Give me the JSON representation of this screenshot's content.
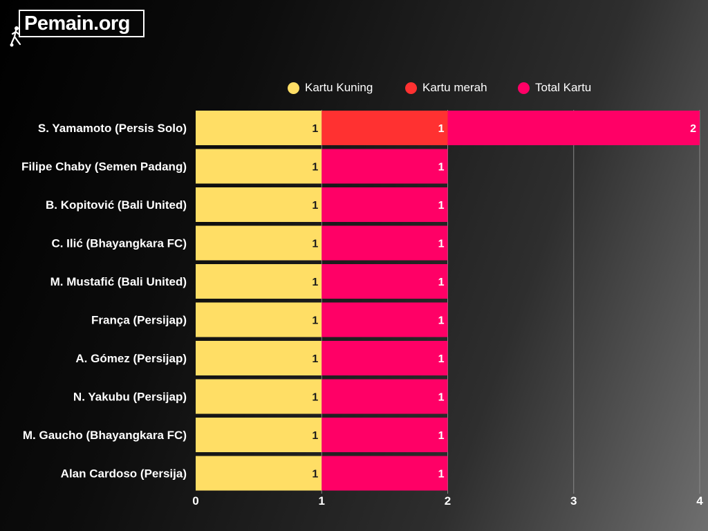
{
  "logo": {
    "text": "Pemain.org"
  },
  "chart_data": {
    "type": "bar",
    "orientation": "horizontal",
    "stacked": true,
    "categories": [
      "S. Yamamoto (Persis Solo)",
      "Filipe Chaby (Semen Padang)",
      "B. Kopitović (Bali United)",
      "C. Ilić (Bhayangkara FC)",
      "M. Mustafić (Bali United)",
      "França (Persijap)",
      "A. Gómez (Persijap)",
      "N. Yakubu (Persijap)",
      "M. Gaucho (Bhayangkara FC)",
      "Alan Cardoso (Persija)"
    ],
    "series": [
      {
        "name": "Kartu Kuning",
        "color": "#FFDE65",
        "values": [
          1,
          1,
          1,
          1,
          1,
          1,
          1,
          1,
          1,
          1
        ]
      },
      {
        "name": "Kartu merah",
        "color": "#FF3131",
        "values": [
          1,
          0,
          0,
          0,
          0,
          0,
          0,
          0,
          0,
          0
        ]
      },
      {
        "name": "Total Kartu",
        "color": "#FF0066",
        "values": [
          2,
          1,
          1,
          1,
          1,
          1,
          1,
          1,
          1,
          1
        ]
      }
    ],
    "x_ticks": [
      "0",
      "1",
      "2",
      "3",
      "4"
    ],
    "xlim": [
      0,
      4
    ],
    "legend_position": "top",
    "grid": "vertical",
    "label_color": "#1a1a1a",
    "label_color_on_dark": "#ffffff"
  }
}
